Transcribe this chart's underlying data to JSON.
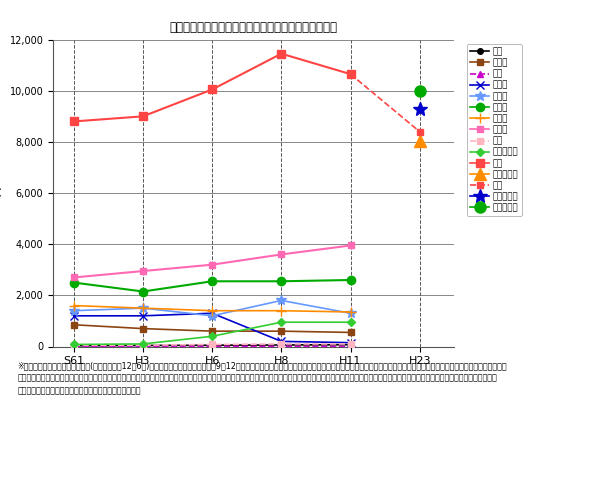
{
  "title": "ニセコ町の二酸化炭素排出量の予測推移と削減目標値",
  "xlabel_ticks": [
    "S61",
    "H3",
    "H6",
    "H8",
    "H11",
    "H23"
  ],
  "x_positions": [
    0,
    1,
    2,
    3,
    4,
    5
  ],
  "ylim": [
    0,
    12000
  ],
  "yticks": [
    0,
    2000,
    4000,
    6000,
    8000,
    10000,
    12000
  ],
  "series": {
    "ガス": {
      "x": [
        0,
        1,
        2,
        3,
        4
      ],
      "y": [
        30,
        40,
        50,
        60,
        70
      ],
      "color": "#000000",
      "linestyle": "-",
      "marker": "o",
      "markersize": 4,
      "linewidth": 1.2,
      "markerfacecolor": "#000000"
    },
    "農村業": {
      "x": [
        0,
        1,
        2,
        3,
        4
      ],
      "y": [
        850,
        700,
        600,
        600,
        550
      ],
      "color": "#8B4513",
      "linestyle": "-",
      "marker": "s",
      "markersize": 5,
      "linewidth": 1.2,
      "markerfacecolor": "#8B4513"
    },
    "鉱業": {
      "x": [
        0,
        1,
        2,
        3,
        4
      ],
      "y": [
        10,
        10,
        5,
        5,
        5
      ],
      "color": "#CC00CC",
      "linestyle": "--",
      "marker": "^",
      "markersize": 5,
      "linewidth": 1.2,
      "markerfacecolor": "#CC00CC"
    },
    "建設業": {
      "x": [
        0,
        1,
        2,
        3,
        4
      ],
      "y": [
        1200,
        1200,
        1300,
        200,
        150
      ],
      "color": "#0000CD",
      "linestyle": "-",
      "marker": "x",
      "markersize": 6,
      "linewidth": 1.2,
      "markerfacecolor": "#0000CD"
    },
    "製造業": {
      "x": [
        0,
        1,
        2,
        3,
        4
      ],
      "y": [
        1400,
        1500,
        1200,
        1800,
        1300
      ],
      "color": "#6699FF",
      "linestyle": "-",
      "marker": "*",
      "markersize": 7,
      "linewidth": 1.2,
      "markerfacecolor": "#6699FF"
    },
    "家庭系": {
      "x": [
        0,
        1,
        2,
        3,
        4
      ],
      "y": [
        2500,
        2150,
        2550,
        2550,
        2600
      ],
      "color": "#00AA00",
      "linestyle": "-",
      "marker": "o",
      "markersize": 6,
      "linewidth": 1.5,
      "markerfacecolor": "#00AA00"
    },
    "業務系": {
      "x": [
        0,
        1,
        2,
        3,
        4
      ],
      "y": [
        1600,
        1500,
        1400,
        1400,
        1350
      ],
      "color": "#FF8C00",
      "linestyle": "-",
      "marker": "+",
      "markersize": 7,
      "linewidth": 1.2,
      "markerfacecolor": "#FF8C00"
    },
    "自動車": {
      "x": [
        0,
        1,
        2,
        3,
        4
      ],
      "y": [
        2700,
        2950,
        3200,
        3600,
        3950
      ],
      "color": "#FF69B4",
      "linestyle": "-",
      "marker": "s",
      "markersize": 4,
      "linewidth": 1.5,
      "markerfacecolor": "#FF69B4"
    },
    "鉄道": {
      "x": [
        0,
        1,
        2,
        3,
        4
      ],
      "y": [
        50,
        50,
        80,
        100,
        100
      ],
      "color": "#FFB6C1",
      "linestyle": "--",
      "marker": "s",
      "markersize": 4,
      "linewidth": 1.2,
      "markerfacecolor": "#FFB6C1"
    },
    "一般廃棄物": {
      "x": [
        0,
        1,
        2,
        3,
        4
      ],
      "y": [
        80,
        100,
        400,
        950,
        950
      ],
      "color": "#33CC33",
      "linestyle": "-",
      "marker": "D",
      "markersize": 4,
      "linewidth": 1.2,
      "markerfacecolor": "#33CC33"
    },
    "小計": {
      "x": [
        0,
        1,
        2,
        3,
        4
      ],
      "y": [
        8800,
        9000,
        10050,
        11450,
        10650
      ],
      "color": "#FF4444",
      "linestyle": "-",
      "marker": "s",
      "markersize": 6,
      "linewidth": 1.5,
      "markerfacecolor": "#FF4444"
    },
    "参考目標1": {
      "x": [
        5
      ],
      "y": [
        8050
      ],
      "color": "#FF8C00",
      "linestyle": "none",
      "marker": "^",
      "markersize": 8,
      "linewidth": 1.5,
      "markerfacecolor": "#FF8C00"
    },
    "目標": {
      "x": [
        4,
        5
      ],
      "y": [
        10650,
        8400
      ],
      "color": "#FF4444",
      "linestyle": "--",
      "marker": "s",
      "markersize": 5,
      "linewidth": 1.2,
      "markerfacecolor": "#FF4444"
    },
    "参考目標2": {
      "x": [
        5
      ],
      "y": [
        9300
      ],
      "color": "#0000CD",
      "linestyle": "none",
      "marker": "*",
      "markersize": 10,
      "linewidth": 1.5,
      "markerfacecolor": "#0000CD"
    },
    "参考目標3": {
      "x": [
        5
      ],
      "y": [
        10000
      ],
      "color": "#00AA00",
      "linestyle": "none",
      "marker": "o",
      "markersize": 8,
      "linewidth": 1.5,
      "markerfacecolor": "#00AA00"
    }
  },
  "legend_info": [
    {
      "label": "ガス",
      "color": "#000000",
      "ls": "-",
      "marker": "o",
      "ms": 4,
      "mfc": "#000000"
    },
    {
      "label": "農村業",
      "color": "#8B4513",
      "ls": "-",
      "marker": "s",
      "ms": 5,
      "mfc": "#8B4513"
    },
    {
      "label": "鉱業",
      "color": "#CC00CC",
      "ls": "--",
      "marker": "^",
      "ms": 5,
      "mfc": "#CC00CC"
    },
    {
      "label": "建設業",
      "color": "#0000CD",
      "ls": "-",
      "marker": "x",
      "ms": 6,
      "mfc": "#0000CD"
    },
    {
      "label": "製造業",
      "color": "#6699FF",
      "ls": "-",
      "marker": "*",
      "ms": 7,
      "mfc": "#6699FF"
    },
    {
      "label": "家庭系",
      "color": "#00AA00",
      "ls": "-",
      "marker": "o",
      "ms": 6,
      "mfc": "#00AA00"
    },
    {
      "label": "業務系",
      "color": "#FF8C00",
      "ls": "-",
      "marker": "+",
      "ms": 7,
      "mfc": "#FF8C00"
    },
    {
      "label": "自動車",
      "color": "#FF69B4",
      "ls": "-",
      "marker": "s",
      "ms": 4,
      "mfc": "#FF69B4"
    },
    {
      "label": "鉄道",
      "color": "#FFB6C1",
      "ls": "--",
      "marker": "s",
      "ms": 4,
      "mfc": "#FFB6C1"
    },
    {
      "label": "一般廃棄物",
      "color": "#33CC33",
      "ls": "-",
      "marker": "D",
      "ms": 4,
      "mfc": "#33CC33"
    },
    {
      "label": "小計",
      "color": "#FF4444",
      "ls": "-",
      "marker": "s",
      "ms": 6,
      "mfc": "#FF4444"
    },
    {
      "label": "参考目標１",
      "color": "#FF8C00",
      "ls": "-",
      "marker": "^",
      "ms": 8,
      "mfc": "#FF8C00"
    },
    {
      "label": "目標",
      "color": "#FF4444",
      "ls": "--",
      "marker": "s",
      "ms": 5,
      "mfc": "#FF4444"
    },
    {
      "label": "参考目標２",
      "color": "#0000CD",
      "ls": "-",
      "marker": "*",
      "ms": 10,
      "mfc": "#0000CD"
    },
    {
      "label": "参考目標３",
      "color": "#00AA00",
      "ls": "-",
      "marker": "o",
      "ms": 8,
      "mfc": "#00AA00"
    }
  ],
  "footnote_lines": [
    "※『北海道地球温暖化防止計画』(北海道／平成12年6月)のもととなる調査報告書（平成9年12月）所収のデータをもとに独自に算出したものですが、データの精査による再検討が望まれます。データ出典の制約上、小計に",
    "は、産業廃棄物に関わる数値は含んでいません。また、ニセコ町の特性上、発電、水産業、船舶、航空、セメント製造業、鉄鋼業も含んでいません。グラフからは、製造業の変動による影響が大きいこと、自動車、一般廃棄物",
    "による影響が一貫して増大していることなどがわかります"
  ],
  "bg_color": "#FFFFFF",
  "grid_color": "#888888",
  "vline_color": "#555555"
}
